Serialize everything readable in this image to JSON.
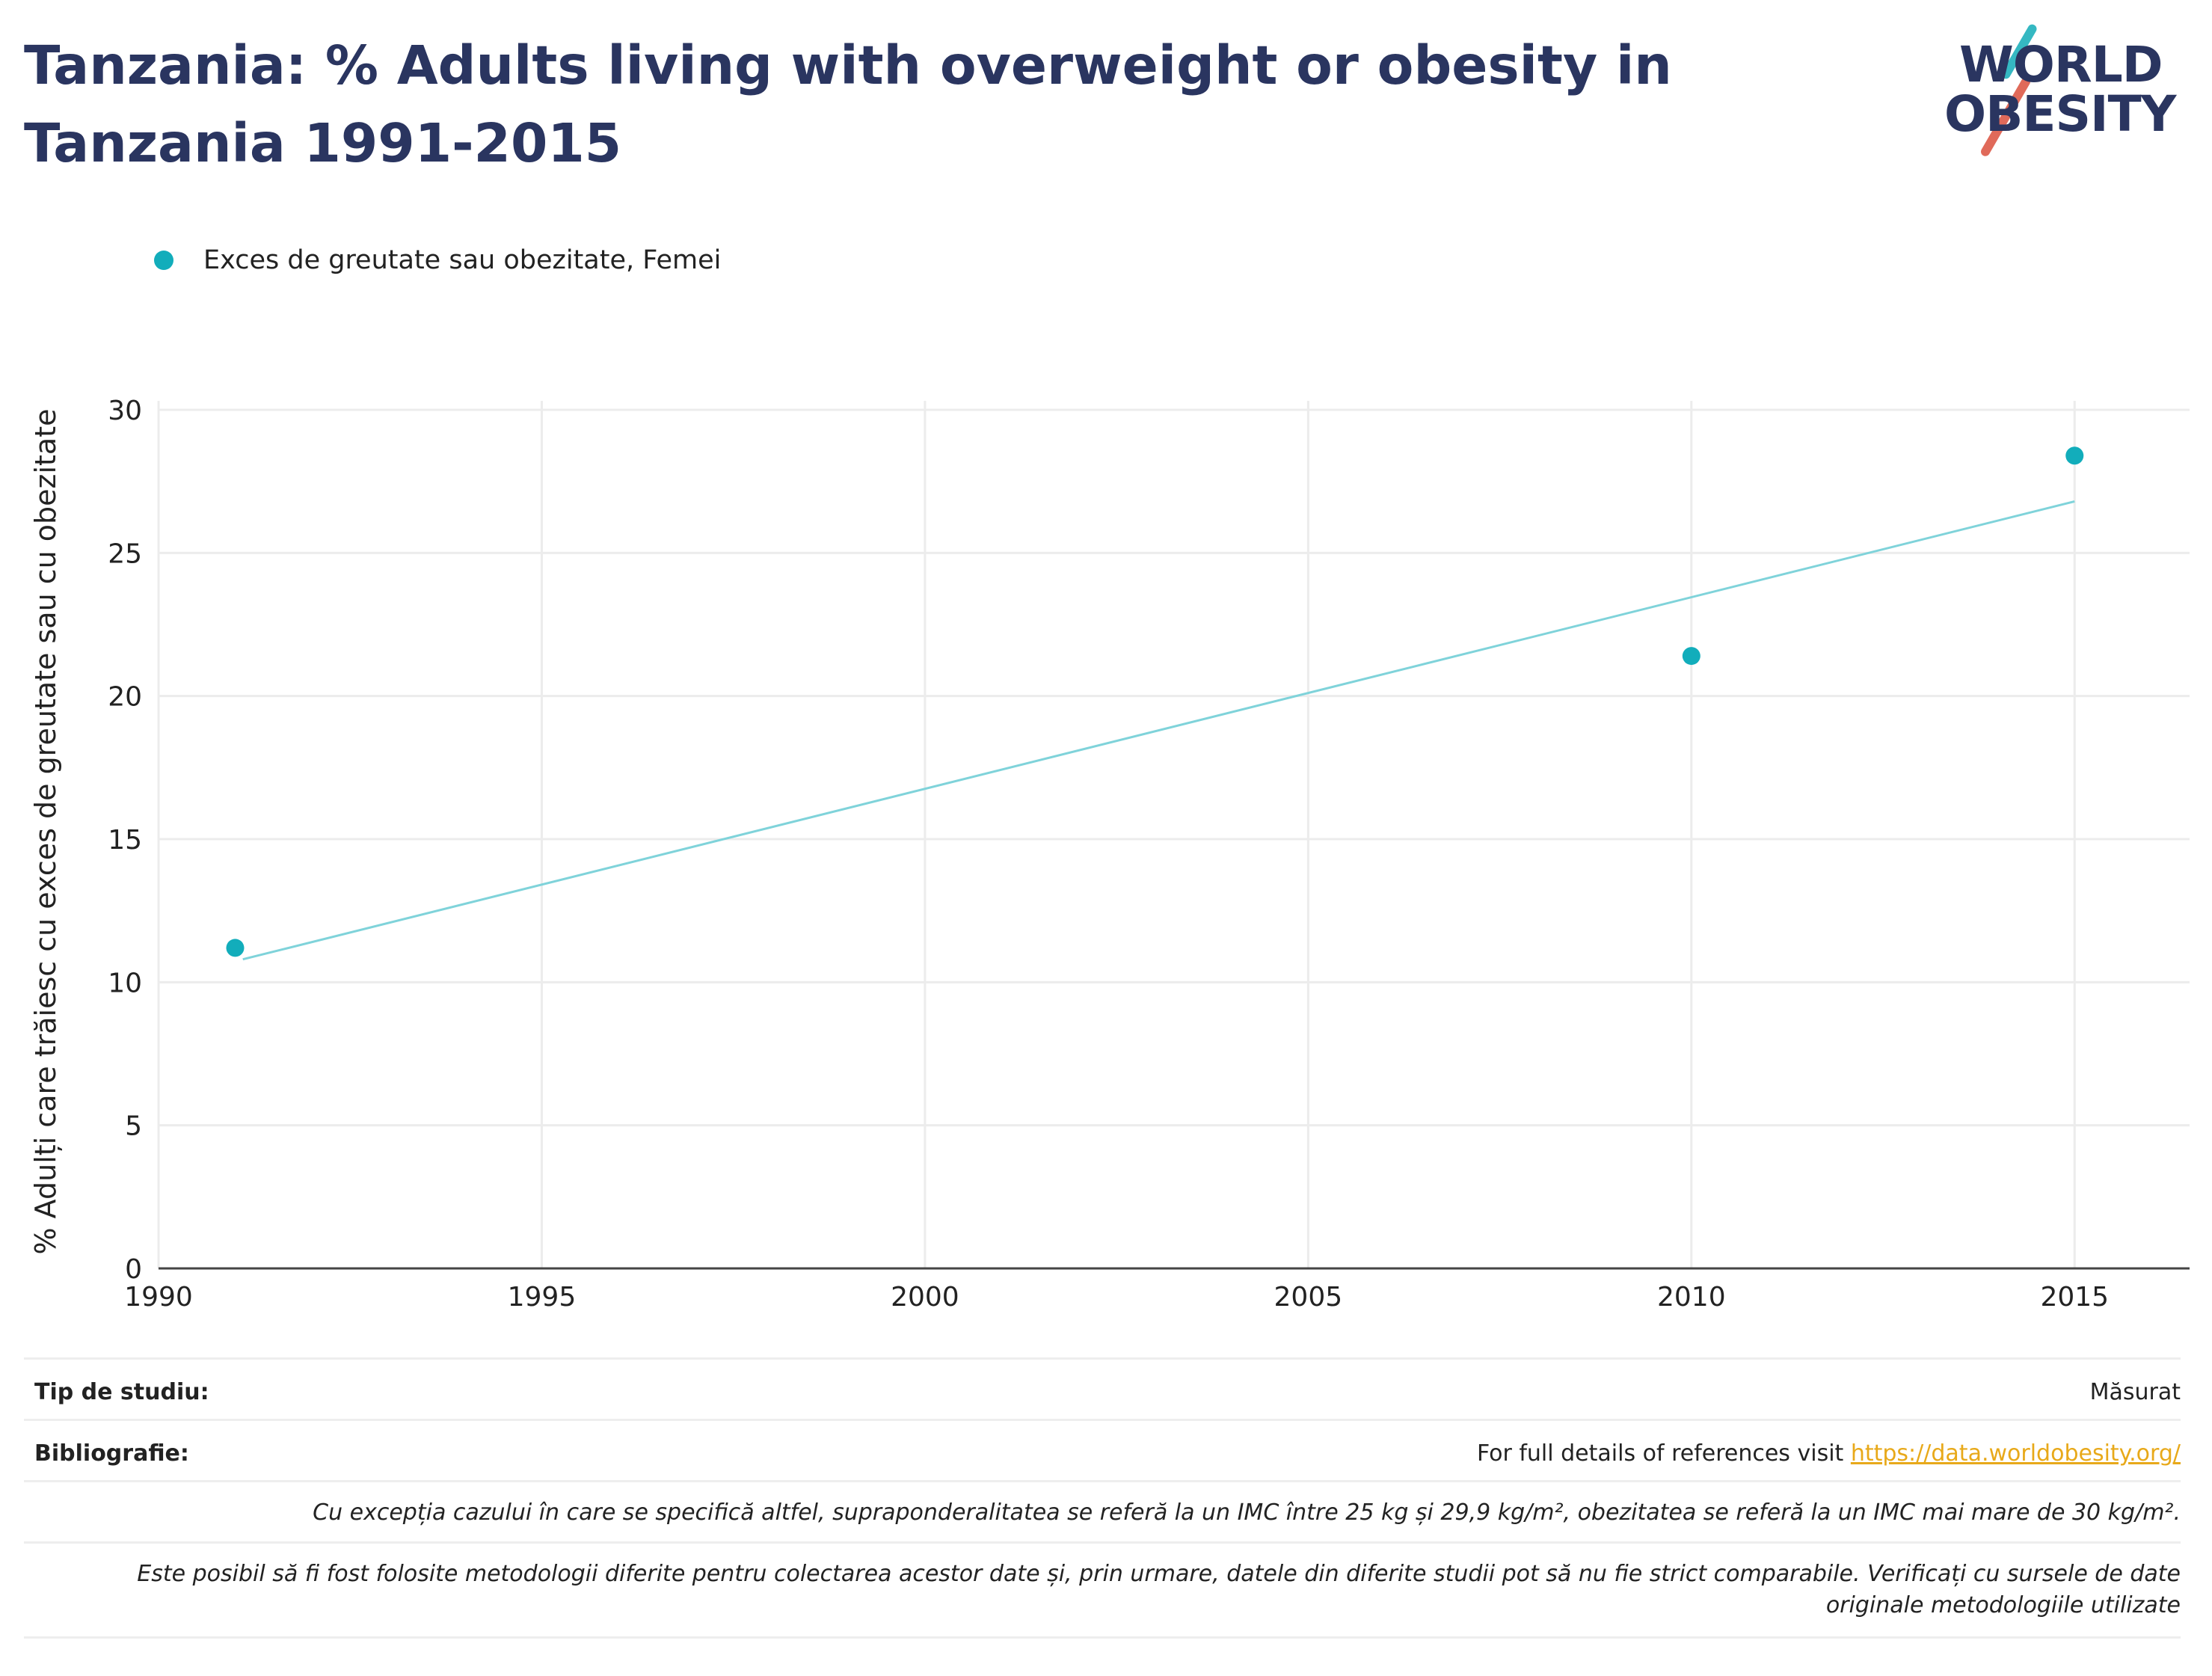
{
  "title": "Tanzania: % Adults living with overweight or obesity in Tanzania 1991-2015",
  "logo": {
    "line1": "WORLD",
    "line2": "OBESITY"
  },
  "colors": {
    "series": "#12adbb",
    "trend": "#7fd3da",
    "title": "#2a3560",
    "link": "#e8a91a"
  },
  "chart_data": {
    "type": "scatter",
    "title": "Tanzania: % Adults living with overweight or obesity in Tanzania 1991-2015",
    "xlabel": "",
    "ylabel": "% Adulți care trăiesc cu exces de greutate sau cu obezitate",
    "xlim": [
      1990,
      2016.5
    ],
    "ylim": [
      0,
      30
    ],
    "xticks": [
      1990,
      1995,
      2000,
      2005,
      2010,
      2015
    ],
    "yticks": [
      0,
      5,
      10,
      15,
      20,
      25,
      30
    ],
    "grid": true,
    "legend_position": "top-left",
    "series": [
      {
        "name": "Exces de greutate sau obezitate, Femei",
        "points": [
          {
            "x": 1991,
            "y": 11.2
          },
          {
            "x": 2010,
            "y": 21.4
          },
          {
            "x": 2015,
            "y": 28.4
          }
        ]
      }
    ],
    "trendline": {
      "x": [
        1991.1,
        2015
      ],
      "y": [
        10.8,
        26.8
      ]
    }
  },
  "footer": {
    "study_type_label": "Tip de studiu:",
    "study_type_value": "Măsurat",
    "bibliography_label": "Bibliografie:",
    "bibliography_text": "For full details of references visit ",
    "bibliography_link": "https://data.worldobesity.org/",
    "note1": "Cu excepția cazului în care se specifică altfel, supraponderalitatea se referă la un IMC între 25 kg și 29,9 kg/m², obezitatea se referă la un IMC mai mare de 30 kg/m².",
    "note2": "Este posibil să fi fost folosite metodologii diferite pentru colectarea acestor date și, prin urmare, datele din diferite studii pot să nu fie strict comparabile. Verificați cu sursele de date originale metodologiile utilizate"
  }
}
